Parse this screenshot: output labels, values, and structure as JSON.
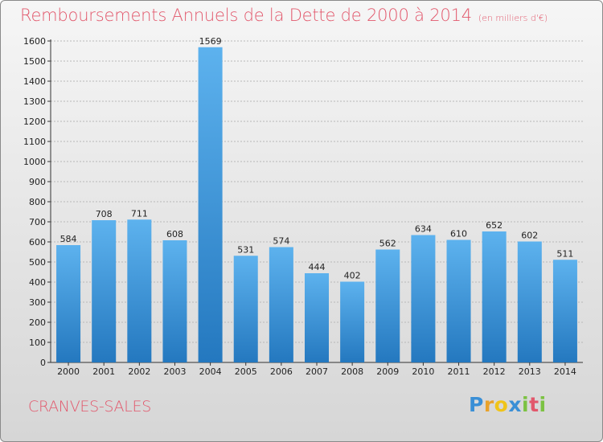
{
  "title": "Remboursements Annuels de la Dette de 2000 à 2014",
  "subtitle": "(en milliers d'€)",
  "commune": "CRANVES-SALES",
  "logo": {
    "letters": [
      "P",
      "r",
      "o",
      "x",
      "i",
      "t",
      "i"
    ],
    "colors": [
      "#3a8fd6",
      "#e8a22b",
      "#f0c419",
      "#3a8fd6",
      "#7cc242",
      "#e2586c",
      "#7cc242"
    ]
  },
  "colors": {
    "bar": "#4aa3e6",
    "bar_dark": "#2478bf",
    "title": "#e2586c",
    "grid": "#b8b8b8"
  },
  "chart_data": {
    "type": "bar",
    "title": "Remboursements Annuels de la Dette de 2000 à 2014",
    "subtitle": "(en milliers d'€)",
    "xlabel": "",
    "ylabel": "",
    "categories": [
      "2000",
      "2001",
      "2002",
      "2003",
      "2004",
      "2005",
      "2006",
      "2007",
      "2008",
      "2009",
      "2010",
      "2011",
      "2012",
      "2013",
      "2014"
    ],
    "values": [
      584,
      708,
      711,
      608,
      1569,
      531,
      574,
      444,
      402,
      562,
      634,
      610,
      652,
      602,
      511
    ],
    "ylim": [
      0,
      1600
    ],
    "yticks": [
      0,
      100,
      200,
      300,
      400,
      500,
      600,
      700,
      800,
      900,
      1000,
      1100,
      1200,
      1300,
      1400,
      1500,
      1600
    ],
    "grid": true
  }
}
